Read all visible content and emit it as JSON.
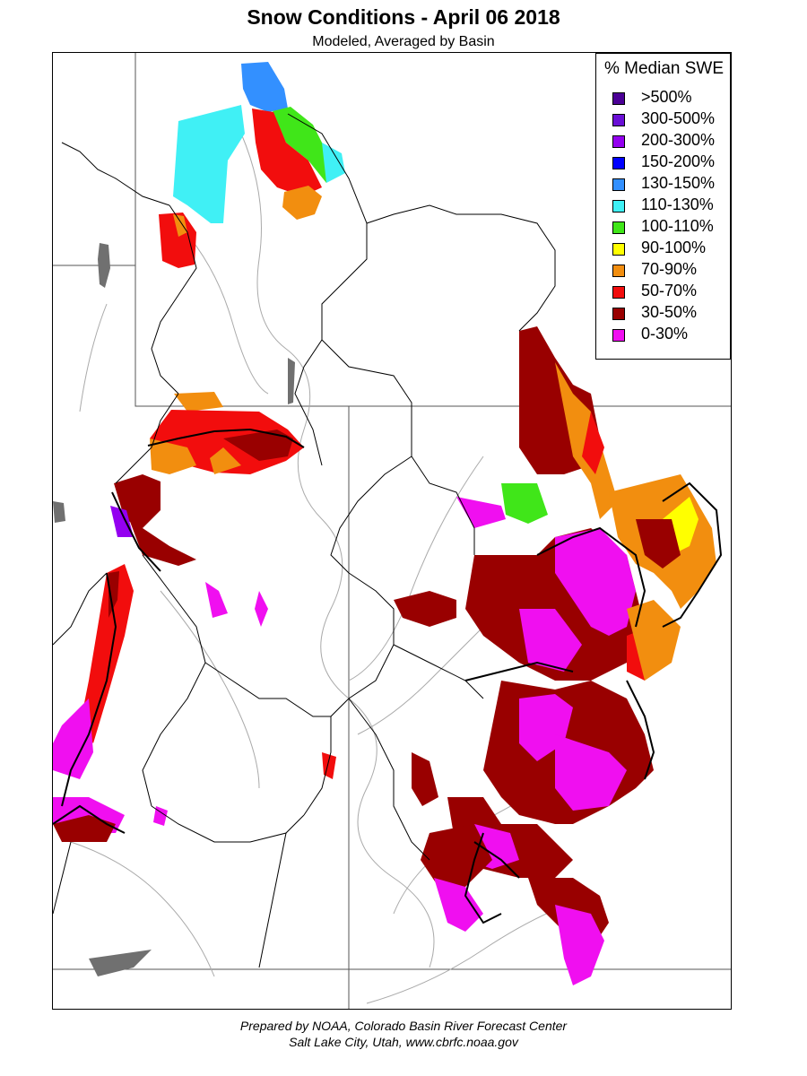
{
  "title": "Snow Conditions - April 06 2018",
  "subtitle": "Modeled, Averaged by Basin",
  "legend": {
    "title": "% Median SWE",
    "items": [
      {
        "label": ">500%",
        "color": "#4b0096"
      },
      {
        "label": "300-500%",
        "color": "#6a0fd6"
      },
      {
        "label": "200-300%",
        "color": "#9400f0"
      },
      {
        "label": "150-200%",
        "color": "#0000ff"
      },
      {
        "label": "130-150%",
        "color": "#3390ff"
      },
      {
        "label": "110-130%",
        "color": "#40f0f5"
      },
      {
        "label": "100-110%",
        "color": "#40e619"
      },
      {
        "label": "90-100%",
        "color": "#ffff00"
      },
      {
        "label": "70-90%",
        "color": "#f28e0f"
      },
      {
        "label": "50-70%",
        "color": "#f20d0d"
      },
      {
        "label": "30-50%",
        "color": "#990000"
      },
      {
        "label": "0-30%",
        "color": "#f00ff0"
      }
    ]
  },
  "footer": {
    "line1": "Prepared by NOAA, Colorado Basin River Forecast Center",
    "line2": "Salt Lake City, Utah, www.cbrfc.noaa.gov"
  }
}
